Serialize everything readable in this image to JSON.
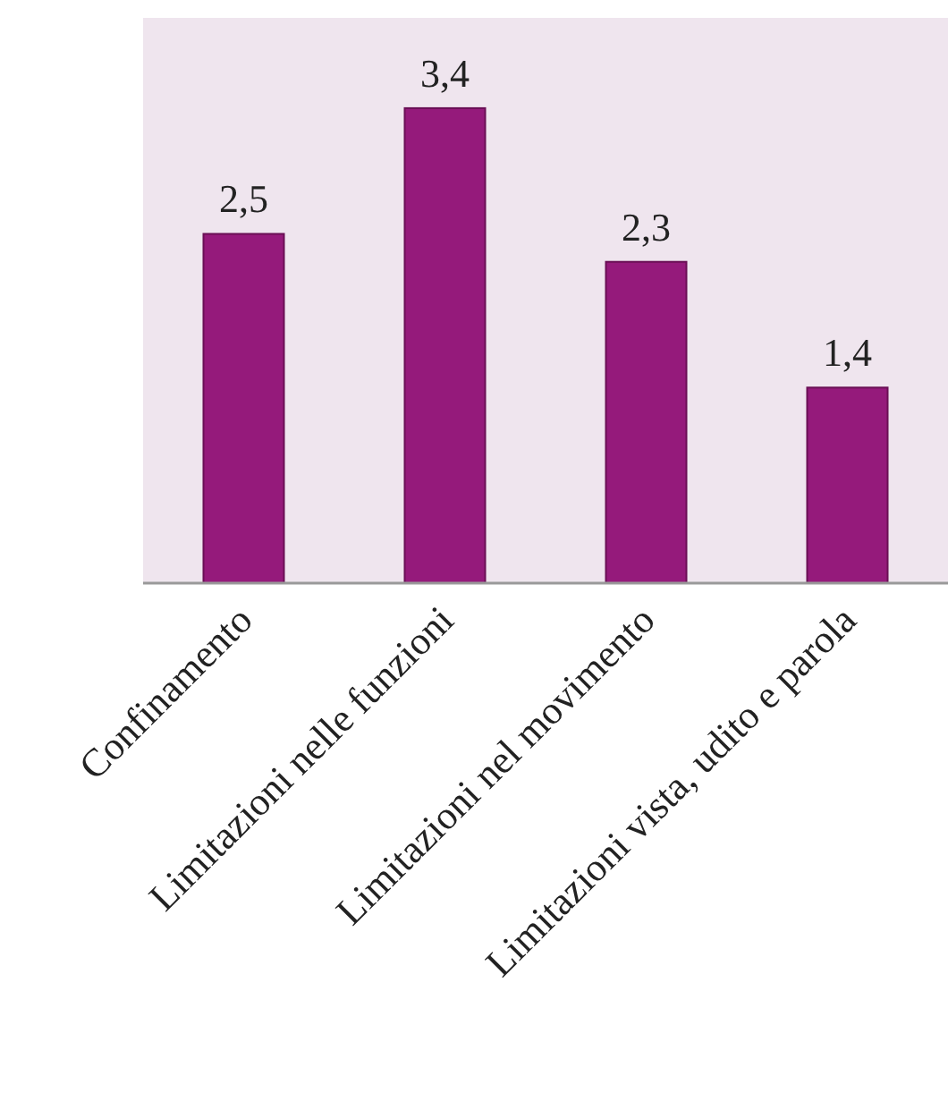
{
  "chart_data": {
    "type": "bar",
    "categories": [
      "Confinamento",
      "Limitazioni nelle funzioni",
      "Limitazioni nel movimento",
      "Limitazioni vista, udito e parola"
    ],
    "values": [
      2.5,
      3.4,
      2.3,
      1.4
    ],
    "color": "#951a7b",
    "value_labels": [
      "2,5",
      "3,4",
      "2,3",
      "1,4"
    ]
  }
}
